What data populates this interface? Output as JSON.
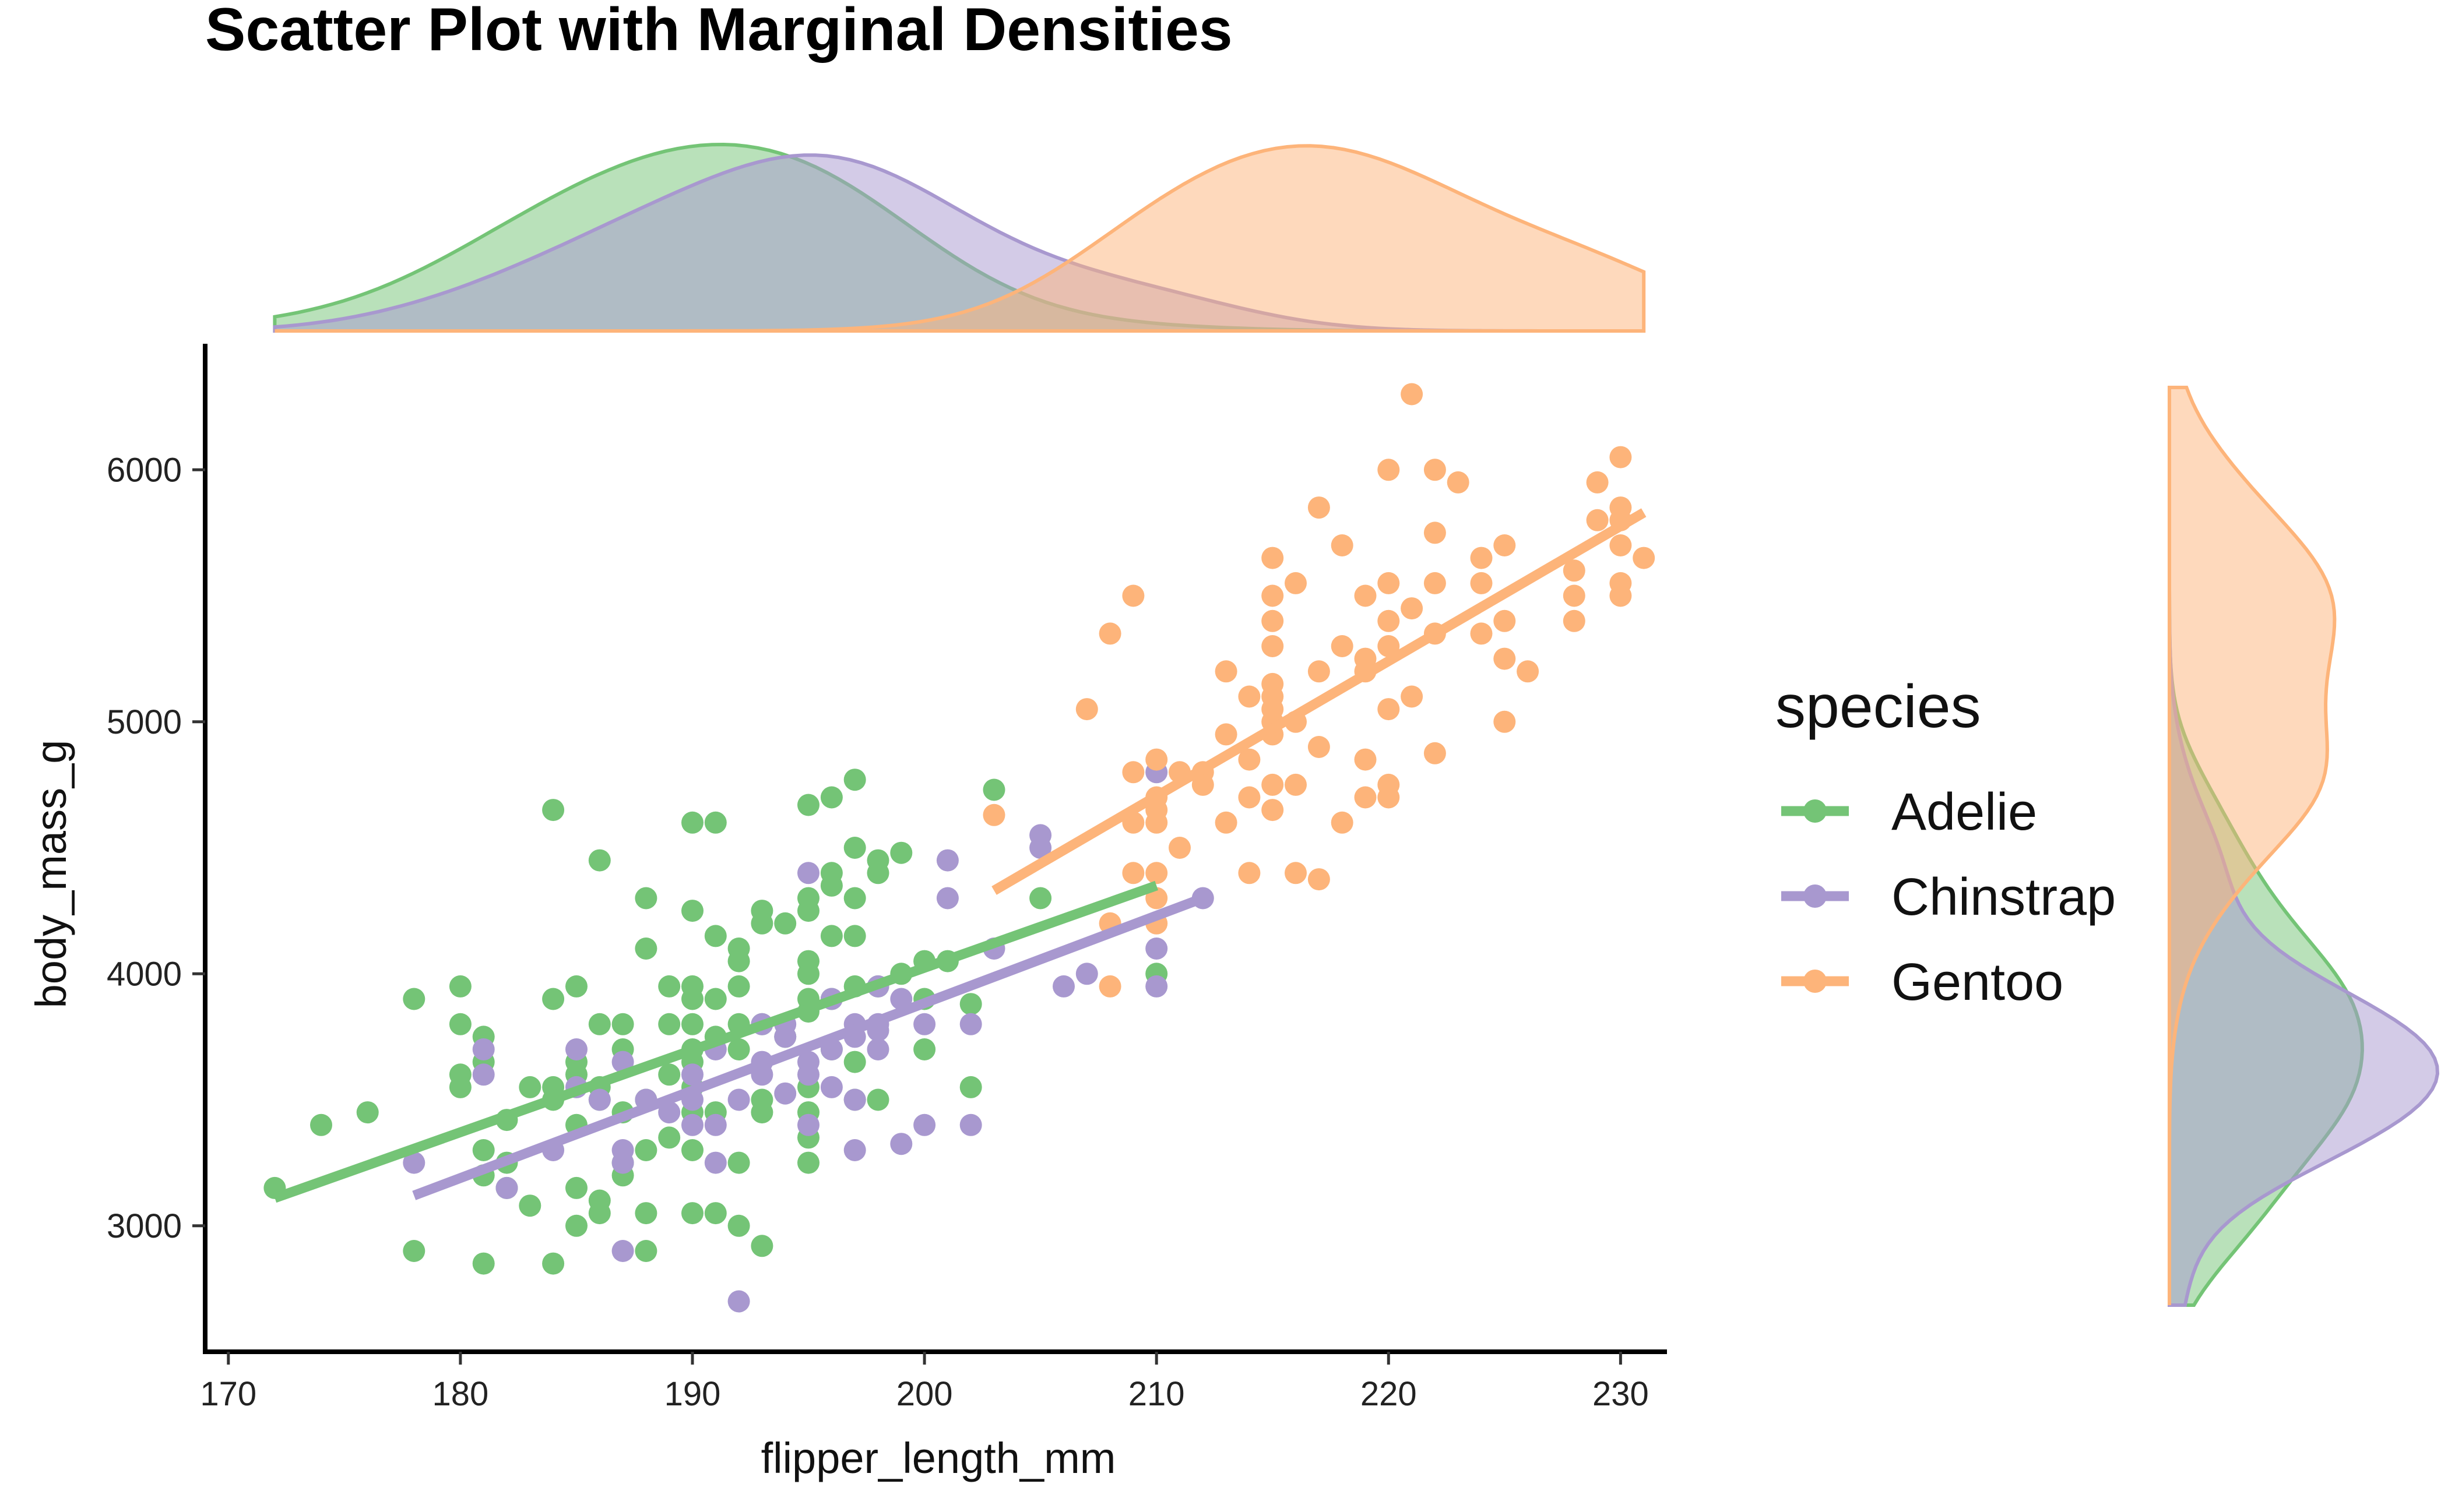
{
  "chart_data": {
    "type": "scatter",
    "title": "Scatter Plot with Marginal Densities",
    "xlabel": "flipper_length_mm",
    "ylabel": "body_mass_g",
    "xlim": [
      169,
      232
    ],
    "ylim": [
      2500,
      6500
    ],
    "xticks": [
      170,
      180,
      190,
      200,
      210,
      220,
      230
    ],
    "yticks": [
      3000,
      4000,
      5000,
      6000
    ],
    "grid": false,
    "legend": {
      "title": "species",
      "position": "right"
    },
    "marginal_densities": {
      "top": "flipper_length_mm",
      "right": "body_mass_g"
    },
    "colors": {
      "Adelie": "#74c476",
      "Chinstrap": "#a898cf",
      "Gentoo": "#fdb47a"
    },
    "series": [
      {
        "name": "Adelie",
        "color": "#74c476",
        "fit": {
          "x": [
            172,
            210
          ],
          "y": [
            3110,
            4350
          ]
        },
        "points": [
          [
            172,
            3150
          ],
          [
            174,
            3400
          ],
          [
            176,
            3450
          ],
          [
            178,
            3900
          ],
          [
            178,
            2900
          ],
          [
            180,
            3950
          ],
          [
            180,
            3800
          ],
          [
            180,
            3600
          ],
          [
            180,
            3550
          ],
          [
            181,
            3750
          ],
          [
            181,
            3650
          ],
          [
            181,
            3300
          ],
          [
            181,
            3200
          ],
          [
            181,
            2850
          ],
          [
            182,
            3250
          ],
          [
            182,
            3150
          ],
          [
            182,
            3420
          ],
          [
            183,
            3550
          ],
          [
            183,
            3080
          ],
          [
            184,
            4650
          ],
          [
            184,
            3900
          ],
          [
            184,
            3550
          ],
          [
            184,
            3500
          ],
          [
            184,
            2850
          ],
          [
            185,
            3950
          ],
          [
            185,
            3650
          ],
          [
            185,
            3600
          ],
          [
            185,
            3400
          ],
          [
            185,
            3150
          ],
          [
            185,
            3000
          ],
          [
            186,
            4450
          ],
          [
            186,
            3800
          ],
          [
            186,
            3550
          ],
          [
            186,
            3500
          ],
          [
            186,
            3100
          ],
          [
            186,
            3050
          ],
          [
            187,
            3800
          ],
          [
            187,
            3700
          ],
          [
            187,
            3450
          ],
          [
            187,
            3250
          ],
          [
            187,
            3200
          ],
          [
            188,
            4300
          ],
          [
            188,
            4100
          ],
          [
            188,
            3500
          ],
          [
            188,
            3300
          ],
          [
            188,
            3050
          ],
          [
            188,
            2900
          ],
          [
            189,
            3950
          ],
          [
            189,
            3800
          ],
          [
            189,
            3600
          ],
          [
            189,
            3350
          ],
          [
            190,
            4600
          ],
          [
            190,
            4250
          ],
          [
            190,
            3950
          ],
          [
            190,
            3900
          ],
          [
            190,
            3800
          ],
          [
            190,
            3700
          ],
          [
            190,
            3650
          ],
          [
            190,
            3550
          ],
          [
            190,
            3450
          ],
          [
            190,
            3300
          ],
          [
            190,
            3050
          ],
          [
            191,
            4600
          ],
          [
            191,
            4150
          ],
          [
            191,
            3900
          ],
          [
            191,
            3750
          ],
          [
            191,
            3450
          ],
          [
            191,
            3050
          ],
          [
            192,
            4100
          ],
          [
            192,
            4050
          ],
          [
            192,
            3950
          ],
          [
            192,
            3800
          ],
          [
            192,
            3700
          ],
          [
            192,
            3250
          ],
          [
            192,
            3000
          ],
          [
            193,
            4250
          ],
          [
            193,
            4200
          ],
          [
            193,
            3800
          ],
          [
            193,
            3500
          ],
          [
            193,
            3450
          ],
          [
            193,
            2920
          ],
          [
            194,
            4200
          ],
          [
            194,
            3750
          ],
          [
            195,
            4300
          ],
          [
            195,
            4250
          ],
          [
            195,
            4050
          ],
          [
            195,
            4000
          ],
          [
            195,
            3900
          ],
          [
            195,
            3850
          ],
          [
            195,
            3550
          ],
          [
            195,
            3450
          ],
          [
            195,
            3350
          ],
          [
            195,
            3250
          ],
          [
            195,
            4670
          ],
          [
            196,
            4400
          ],
          [
            196,
            4350
          ],
          [
            196,
            4150
          ],
          [
            196,
            3900
          ],
          [
            196,
            3700
          ],
          [
            196,
            4700
          ],
          [
            197,
            4770
          ],
          [
            197,
            4500
          ],
          [
            197,
            4300
          ],
          [
            197,
            4150
          ],
          [
            197,
            3950
          ],
          [
            197,
            3650
          ],
          [
            197,
            3500
          ],
          [
            198,
            4450
          ],
          [
            198,
            4400
          ],
          [
            198,
            3950
          ],
          [
            198,
            3500
          ],
          [
            199,
            4480
          ],
          [
            199,
            4000
          ],
          [
            200,
            4050
          ],
          [
            200,
            3900
          ],
          [
            200,
            3700
          ],
          [
            201,
            4050
          ],
          [
            202,
            3880
          ],
          [
            202,
            3550
          ],
          [
            203,
            4730
          ],
          [
            205,
            4300
          ],
          [
            210,
            4000
          ]
        ]
      },
      {
        "name": "Chinstrap",
        "color": "#a898cf",
        "fit": {
          "x": [
            178,
            212
          ],
          "y": [
            3120,
            4300
          ]
        },
        "points": [
          [
            178,
            3250
          ],
          [
            181,
            3700
          ],
          [
            181,
            3600
          ],
          [
            182,
            3150
          ],
          [
            184,
            3300
          ],
          [
            185,
            3700
          ],
          [
            185,
            3550
          ],
          [
            186,
            3500
          ],
          [
            187,
            3650
          ],
          [
            187,
            3300
          ],
          [
            187,
            3250
          ],
          [
            187,
            2900
          ],
          [
            188,
            3500
          ],
          [
            189,
            3450
          ],
          [
            190,
            3600
          ],
          [
            190,
            3400
          ],
          [
            190,
            3500
          ],
          [
            191,
            3700
          ],
          [
            191,
            3400
          ],
          [
            191,
            3250
          ],
          [
            192,
            2700
          ],
          [
            192,
            3500
          ],
          [
            193,
            3800
          ],
          [
            193,
            3600
          ],
          [
            193,
            3650
          ],
          [
            194,
            3800
          ],
          [
            194,
            3750
          ],
          [
            194,
            3525
          ],
          [
            195,
            4400
          ],
          [
            195,
            3650
          ],
          [
            195,
            3600
          ],
          [
            195,
            3400
          ],
          [
            196,
            3900
          ],
          [
            196,
            3700
          ],
          [
            196,
            3550
          ],
          [
            197,
            3800
          ],
          [
            197,
            3750
          ],
          [
            197,
            3500
          ],
          [
            197,
            3300
          ],
          [
            198,
            3950
          ],
          [
            198,
            3800
          ],
          [
            198,
            3700
          ],
          [
            198,
            3775
          ],
          [
            199,
            3900
          ],
          [
            199,
            3325
          ],
          [
            200,
            3800
          ],
          [
            200,
            3400
          ],
          [
            201,
            4450
          ],
          [
            201,
            4300
          ],
          [
            202,
            3800
          ],
          [
            202,
            3400
          ],
          [
            203,
            4100
          ],
          [
            205,
            4550
          ],
          [
            205,
            4500
          ],
          [
            206,
            3950
          ],
          [
            207,
            4000
          ],
          [
            210,
            4800
          ],
          [
            210,
            4100
          ],
          [
            210,
            3950
          ],
          [
            212,
            4300
          ]
        ]
      },
      {
        "name": "Gentoo",
        "color": "#fdb47a",
        "fit": {
          "x": [
            203,
            231
          ],
          "y": [
            4330,
            5830
          ]
        },
        "points": [
          [
            203,
            4630
          ],
          [
            207,
            5050
          ],
          [
            208,
            5350
          ],
          [
            208,
            4200
          ],
          [
            208,
            3950
          ],
          [
            209,
            5500
          ],
          [
            209,
            4800
          ],
          [
            209,
            4600
          ],
          [
            209,
            4400
          ],
          [
            210,
            4850
          ],
          [
            210,
            4700
          ],
          [
            210,
            4650
          ],
          [
            210,
            4600
          ],
          [
            210,
            4400
          ],
          [
            210,
            4300
          ],
          [
            210,
            4200
          ],
          [
            211,
            4800
          ],
          [
            211,
            4500
          ],
          [
            212,
            4800
          ],
          [
            212,
            4750
          ],
          [
            213,
            5200
          ],
          [
            213,
            4950
          ],
          [
            213,
            4600
          ],
          [
            214,
            5100
          ],
          [
            214,
            4850
          ],
          [
            214,
            4700
          ],
          [
            214,
            4400
          ],
          [
            215,
            5650
          ],
          [
            215,
            5500
          ],
          [
            215,
            5400
          ],
          [
            215,
            5300
          ],
          [
            215,
            5150
          ],
          [
            215,
            5100
          ],
          [
            215,
            5050
          ],
          [
            215,
            5000
          ],
          [
            215,
            4950
          ],
          [
            215,
            4750
          ],
          [
            215,
            4650
          ],
          [
            216,
            5550
          ],
          [
            216,
            5000
          ],
          [
            216,
            4750
          ],
          [
            216,
            4400
          ],
          [
            217,
            5850
          ],
          [
            217,
            5200
          ],
          [
            217,
            4900
          ],
          [
            217,
            4375
          ],
          [
            218,
            5700
          ],
          [
            218,
            5300
          ],
          [
            218,
            4600
          ],
          [
            219,
            5500
          ],
          [
            219,
            5250
          ],
          [
            219,
            5200
          ],
          [
            219,
            4850
          ],
          [
            219,
            4700
          ],
          [
            220,
            6000
          ],
          [
            220,
            5550
          ],
          [
            220,
            5400
          ],
          [
            220,
            5300
          ],
          [
            220,
            5050
          ],
          [
            220,
            4750
          ],
          [
            220,
            4700
          ],
          [
            221,
            6300
          ],
          [
            221,
            5450
          ],
          [
            221,
            5100
          ],
          [
            222,
            6000
          ],
          [
            222,
            5750
          ],
          [
            222,
            5550
          ],
          [
            222,
            5350
          ],
          [
            222,
            4875
          ],
          [
            223,
            5950
          ],
          [
            224,
            5650
          ],
          [
            224,
            5550
          ],
          [
            224,
            5350
          ],
          [
            225,
            5700
          ],
          [
            225,
            5400
          ],
          [
            225,
            5250
          ],
          [
            225,
            5000
          ],
          [
            226,
            5200
          ],
          [
            228,
            5600
          ],
          [
            228,
            5500
          ],
          [
            228,
            5400
          ],
          [
            229,
            5950
          ],
          [
            229,
            5800
          ],
          [
            230,
            6050
          ],
          [
            230,
            5850
          ],
          [
            230,
            5800
          ],
          [
            230,
            5700
          ],
          [
            230,
            5550
          ],
          [
            230,
            5500
          ],
          [
            231,
            5650
          ]
        ]
      }
    ]
  }
}
